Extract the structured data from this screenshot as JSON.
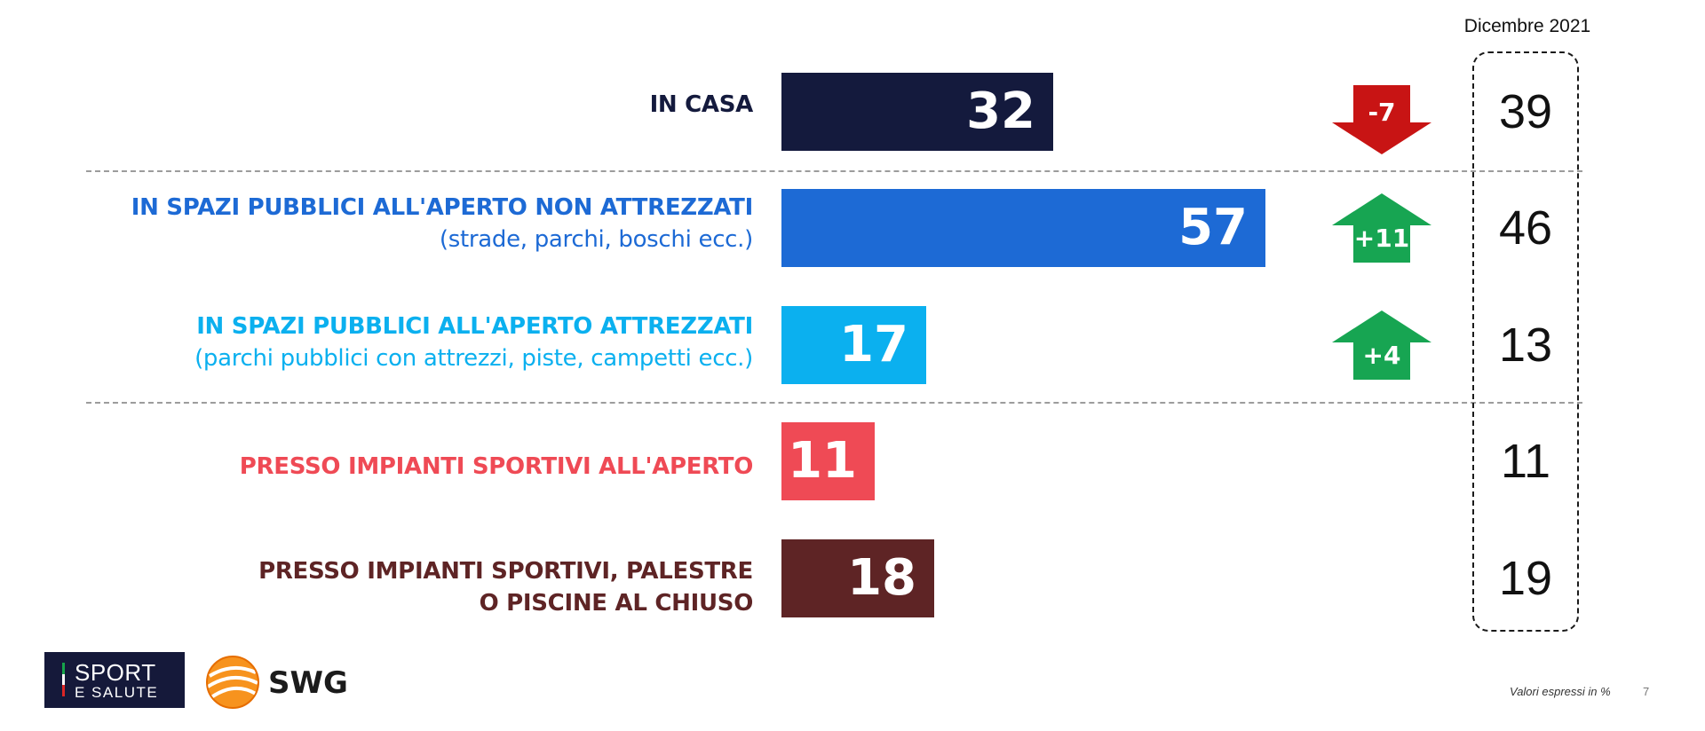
{
  "colors": {
    "in_casa": "#141a3d",
    "spazi_non_attrezzati": "#1d6ad5",
    "spazi_attrezzati": "#0bb0ef",
    "impianti_aperto": "#ef4a55",
    "impianti_chiuso": "#5e2425",
    "arrow_down": "#c81414",
    "arrow_up": "#17a552"
  },
  "chart_data": {
    "type": "bar",
    "orientation": "horizontal",
    "xlim": [
      0,
      100
    ],
    "grid": false,
    "categories": [
      {
        "title": "IN CASA",
        "subtitle": ""
      },
      {
        "title": "IN SPAZI PUBBLICI ALL'APERTO NON ATTREZZATI",
        "subtitle": "(strade, parchi, boschi ecc.)"
      },
      {
        "title": "IN SPAZI PUBBLICI ALL'APERTO ATTREZZATI",
        "subtitle": "(parchi pubblici con attrezzi, piste, campetti ecc.)"
      },
      {
        "title": "PRESSO IMPIANTI SPORTIVI ALL'APERTO",
        "subtitle": ""
      },
      {
        "title": "PRESSO IMPIANTI SPORTIVI, PALESTRE",
        "subtitle": "O PISCINE AL CHIUSO"
      }
    ],
    "values": [
      32,
      57,
      17,
      11,
      18
    ],
    "comparison": {
      "label": "Dicembre 2021",
      "values": [
        39,
        46,
        13,
        11,
        19
      ]
    },
    "changes": [
      "-7",
      "+11",
      "+4",
      "",
      ""
    ],
    "change_direction": [
      "down",
      "up",
      "up",
      "",
      ""
    ],
    "note": "Valori espressi in %"
  },
  "footer": {
    "page_number": "7",
    "logo_sport_line1": "SPORT",
    "logo_sport_line2": "E SALUTE",
    "logo_swg": "SWG"
  }
}
